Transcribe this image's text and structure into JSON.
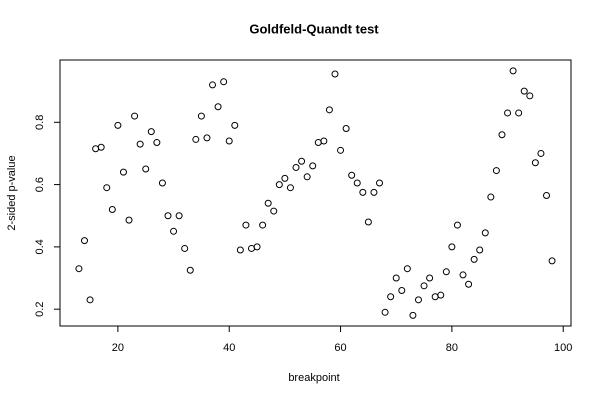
{
  "chart_data": {
    "type": "scatter",
    "title": "Goldfeld-Quandt test",
    "x_label": "breakpoint",
    "y_label": "2-sided p-value",
    "x": [
      13,
      14,
      15,
      16,
      17,
      18,
      19,
      20,
      21,
      22,
      23,
      24,
      25,
      26,
      27,
      28,
      29,
      30,
      31,
      32,
      33,
      34,
      35,
      36,
      37,
      38,
      39,
      40,
      41,
      42,
      43,
      44,
      45,
      46,
      47,
      48,
      49,
      50,
      51,
      52,
      53,
      54,
      55,
      56,
      57,
      58,
      59,
      60,
      61,
      62,
      63,
      64,
      65,
      66,
      67,
      68,
      69,
      70,
      71,
      72,
      73,
      74,
      75,
      76,
      77,
      78,
      79,
      80,
      81,
      82,
      83,
      84,
      85,
      86,
      87,
      88,
      89,
      90,
      91,
      92,
      93,
      94,
      95,
      96,
      97,
      98
    ],
    "values": [
      0.33,
      0.42,
      0.23,
      0.715,
      0.72,
      0.59,
      0.52,
      0.79,
      0.64,
      0.486,
      0.82,
      0.73,
      0.65,
      0.77,
      0.735,
      0.605,
      0.5,
      0.45,
      0.5,
      0.395,
      0.325,
      0.745,
      0.82,
      0.75,
      0.92,
      0.85,
      0.93,
      0.74,
      0.79,
      0.39,
      0.47,
      0.395,
      0.4,
      0.47,
      0.54,
      0.515,
      0.6,
      0.62,
      0.59,
      0.655,
      0.675,
      0.625,
      0.66,
      0.735,
      0.74,
      0.84,
      0.955,
      0.71,
      0.78,
      0.63,
      0.605,
      0.575,
      0.48,
      0.575,
      0.605,
      0.19,
      0.24,
      0.3,
      0.26,
      0.33,
      0.18,
      0.23,
      0.275,
      0.3,
      0.24,
      0.245,
      0.32,
      0.4,
      0.47,
      0.31,
      0.28,
      0.36,
      0.39,
      0.445,
      0.56,
      0.645,
      0.76,
      0.83,
      0.965,
      0.83,
      0.9,
      0.885,
      0.67,
      0.7,
      0.565,
      0.355
    ],
    "color": "#000000",
    "xlim": [
      9.6,
      101.4
    ],
    "ylim": [
      0.146,
      1.0
    ],
    "xticks": [
      20,
      40,
      60,
      80,
      100
    ],
    "yticks": [
      0.2,
      0.4,
      0.6,
      0.8
    ]
  }
}
